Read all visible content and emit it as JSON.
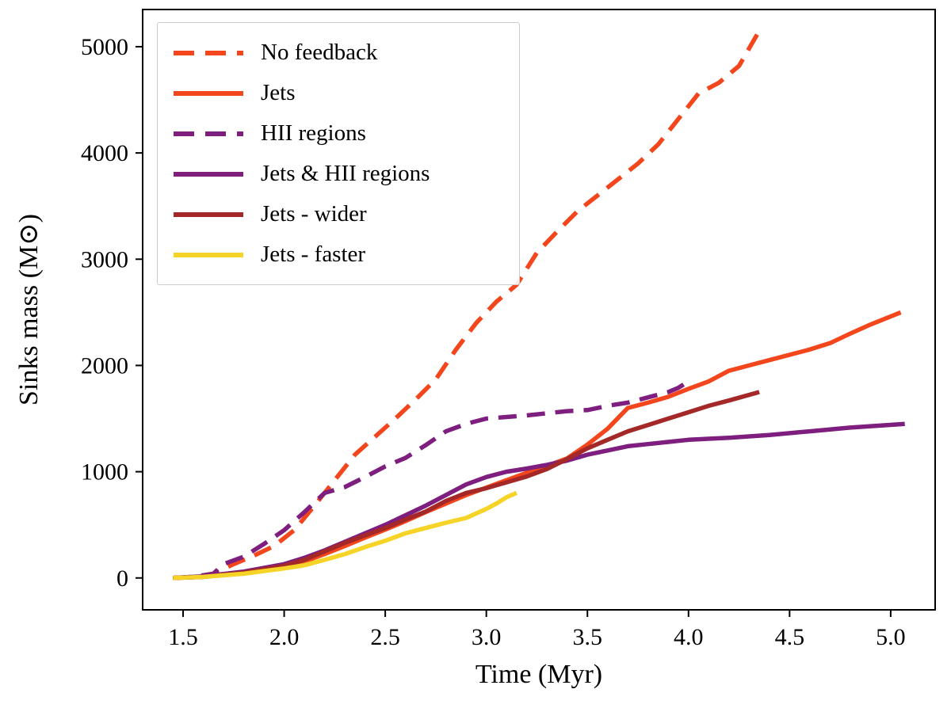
{
  "chart_data": {
    "type": "line",
    "title": "",
    "xlabel": "Time (Myr)",
    "ylabel": "Sinks mass (M⊙)",
    "xlim": [
      1.3,
      5.22
    ],
    "ylim": [
      -300,
      5350
    ],
    "grid": false,
    "legend_position": "upper left",
    "axis_color": "#000000",
    "xticks": [
      {
        "v": 1.5,
        "label": "1.5"
      },
      {
        "v": 2.0,
        "label": "2.0"
      },
      {
        "v": 2.5,
        "label": "2.5"
      },
      {
        "v": 3.0,
        "label": "3.0"
      },
      {
        "v": 3.5,
        "label": "3.5"
      },
      {
        "v": 4.0,
        "label": "4.0"
      },
      {
        "v": 4.5,
        "label": "4.5"
      },
      {
        "v": 5.0,
        "label": "5.0"
      }
    ],
    "yticks": [
      {
        "v": 0,
        "label": "0"
      },
      {
        "v": 1000,
        "label": "1000"
      },
      {
        "v": 2000,
        "label": "2000"
      },
      {
        "v": 3000,
        "label": "3000"
      },
      {
        "v": 4000,
        "label": "4000"
      },
      {
        "v": 5000,
        "label": "5000"
      }
    ],
    "series": [
      {
        "name": "No feedback",
        "color": "#F4461C",
        "dash": true,
        "x": [
          1.45,
          1.55,
          1.65,
          1.75,
          1.85,
          1.95,
          2.05,
          2.15,
          2.25,
          2.35,
          2.45,
          2.55,
          2.65,
          2.75,
          2.85,
          2.95,
          3.05,
          3.15,
          3.25,
          3.35,
          3.45,
          3.55,
          3.65,
          3.75,
          3.85,
          3.95,
          4.05,
          4.15,
          4.25,
          4.35
        ],
        "y": [
          0,
          10,
          40,
          130,
          210,
          300,
          450,
          680,
          920,
          1160,
          1330,
          1500,
          1680,
          1870,
          2150,
          2400,
          2600,
          2760,
          3060,
          3260,
          3450,
          3600,
          3750,
          3900,
          4080,
          4320,
          4560,
          4660,
          4820,
          5150
        ]
      },
      {
        "name": "Jets",
        "color": "#F4461C",
        "dash": false,
        "x": [
          1.45,
          1.6,
          1.8,
          2.0,
          2.1,
          2.2,
          2.3,
          2.4,
          2.5,
          2.6,
          2.7,
          2.8,
          2.9,
          3.0,
          3.1,
          3.2,
          3.3,
          3.4,
          3.5,
          3.6,
          3.7,
          3.8,
          3.9,
          4.0,
          4.1,
          4.2,
          4.3,
          4.4,
          4.5,
          4.6,
          4.7,
          4.8,
          4.9,
          5.05
        ],
        "y": [
          0,
          10,
          45,
          105,
          155,
          225,
          300,
          380,
          455,
          535,
          620,
          700,
          780,
          850,
          920,
          990,
          1055,
          1125,
          1255,
          1405,
          1600,
          1650,
          1705,
          1780,
          1850,
          1950,
          2000,
          2050,
          2100,
          2150,
          2210,
          2300,
          2385,
          2500
        ]
      },
      {
        "name": "HII regions",
        "color": "#7E1E7E",
        "dash": true,
        "x": [
          1.45,
          1.55,
          1.65,
          1.7,
          1.8,
          1.9,
          2.0,
          2.1,
          2.2,
          2.3,
          2.4,
          2.5,
          2.6,
          2.7,
          2.8,
          2.9,
          3.0,
          3.1,
          3.2,
          3.3,
          3.4,
          3.5,
          3.6,
          3.7,
          3.8,
          3.9,
          3.95,
          4.0
        ],
        "y": [
          0,
          10,
          40,
          130,
          200,
          320,
          450,
          620,
          800,
          855,
          950,
          1050,
          1130,
          1250,
          1380,
          1450,
          1500,
          1515,
          1530,
          1550,
          1570,
          1580,
          1620,
          1650,
          1700,
          1750,
          1790,
          1850
        ]
      },
      {
        "name": "Jets & HII regions",
        "color": "#7E1E7E",
        "dash": false,
        "x": [
          1.45,
          1.6,
          1.8,
          2.0,
          2.1,
          2.2,
          2.3,
          2.4,
          2.5,
          2.6,
          2.7,
          2.8,
          2.9,
          3.0,
          3.1,
          3.2,
          3.3,
          3.4,
          3.5,
          3.6,
          3.7,
          3.8,
          3.9,
          4.0,
          4.2,
          4.4,
          4.6,
          4.8,
          5.07
        ],
        "y": [
          0,
          15,
          60,
          130,
          190,
          260,
          340,
          420,
          500,
          590,
          680,
          780,
          880,
          950,
          1000,
          1030,
          1065,
          1105,
          1160,
          1200,
          1240,
          1260,
          1280,
          1300,
          1320,
          1345,
          1380,
          1415,
          1450
        ]
      },
      {
        "name": "Jets - wider",
        "color": "#A52828",
        "dash": false,
        "x": [
          1.45,
          1.6,
          1.8,
          2.0,
          2.1,
          2.2,
          2.3,
          2.4,
          2.5,
          2.6,
          2.7,
          2.8,
          2.9,
          3.0,
          3.1,
          3.2,
          3.3,
          3.4,
          3.5,
          3.6,
          3.7,
          3.8,
          3.9,
          4.0,
          4.1,
          4.2,
          4.35
        ],
        "y": [
          0,
          10,
          50,
          115,
          170,
          250,
          330,
          400,
          470,
          550,
          625,
          725,
          800,
          845,
          900,
          955,
          1025,
          1120,
          1220,
          1300,
          1380,
          1440,
          1500,
          1560,
          1620,
          1670,
          1750
        ]
      },
      {
        "name": "Jets - faster",
        "color": "#F5D327",
        "dash": false,
        "x": [
          1.45,
          1.6,
          1.8,
          2.0,
          2.1,
          2.2,
          2.3,
          2.4,
          2.5,
          2.6,
          2.7,
          2.8,
          2.9,
          3.0,
          3.05,
          3.1,
          3.15
        ],
        "y": [
          0,
          10,
          40,
          90,
          120,
          170,
          225,
          290,
          350,
          420,
          470,
          520,
          565,
          650,
          700,
          760,
          800
        ]
      }
    ]
  }
}
